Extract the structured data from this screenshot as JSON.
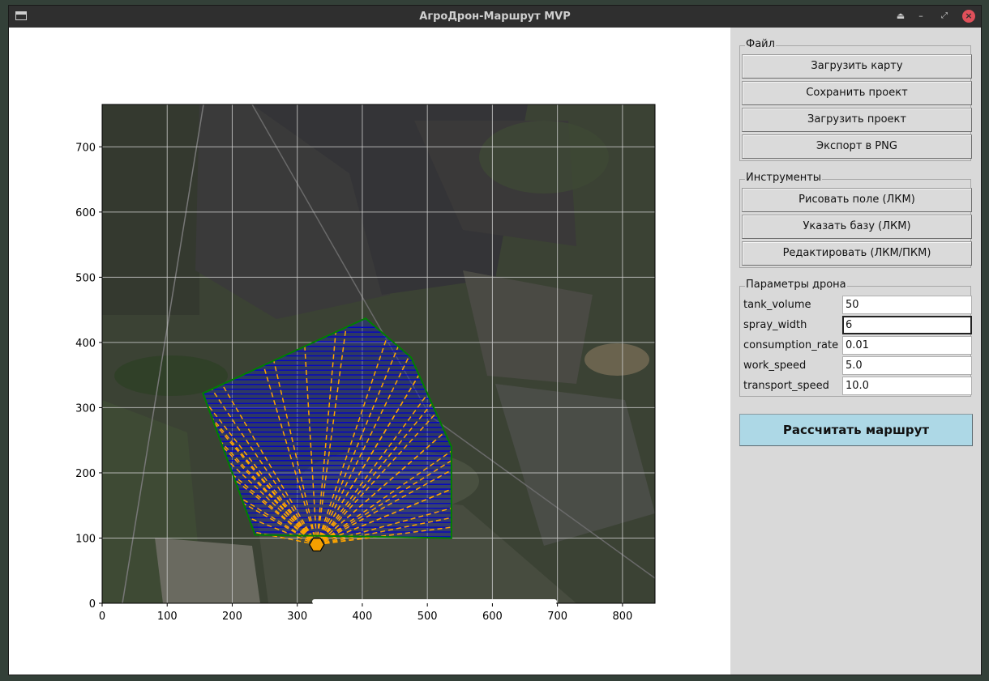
{
  "window": {
    "title": "АгроДрон-Маршрут MVP"
  },
  "titlebar_icons": [
    "app-icon",
    "keep-above-icon",
    "minimize-icon",
    "maximize-icon",
    "close-icon"
  ],
  "sidebar": {
    "file_group": {
      "label": "Файл",
      "buttons": [
        "Загрузить карту",
        "Сохранить проект",
        "Загрузить проект",
        "Экспорт в PNG"
      ]
    },
    "tools_group": {
      "label": "Инструменты",
      "buttons": [
        "Рисовать поле (ЛКМ)",
        "Указать базу (ЛКМ)",
        "Редактировать (ЛКМ/ПКМ)"
      ]
    },
    "params_group": {
      "label": "Параметры дрона",
      "rows": [
        {
          "label": "tank_volume",
          "value": "50"
        },
        {
          "label": "spray_width",
          "value": "6"
        },
        {
          "label": "consumption_rate",
          "value": "0.01"
        },
        {
          "label": "work_speed",
          "value": "5.0"
        },
        {
          "label": "transport_speed",
          "value": "10.0"
        }
      ]
    },
    "calculate_label": "Рассчитать маршрут"
  },
  "chart_data": {
    "type": "line",
    "background": "satellite-map-image",
    "xlim": [
      0,
      850
    ],
    "ylim": [
      0,
      765
    ],
    "x_ticks": [
      0,
      100,
      200,
      300,
      400,
      500,
      600,
      700,
      800
    ],
    "y_ticks": [
      0,
      100,
      200,
      300,
      400,
      500,
      600,
      700
    ],
    "grid": true,
    "field_polygon": {
      "color": "#008000",
      "points": [
        [
          155,
          322
        ],
        [
          405,
          437
        ],
        [
          475,
          377
        ],
        [
          537,
          240
        ],
        [
          537,
          100
        ],
        [
          235,
          105
        ]
      ]
    },
    "base": {
      "x": 330,
      "y": 90,
      "color": "#f5a000"
    },
    "spray_lines": {
      "color": "#0000cc",
      "y_min": 102,
      "y_max": 430,
      "step": 7.3
    },
    "transport_lines": {
      "color": "#ffa500",
      "style": "dashed"
    }
  }
}
